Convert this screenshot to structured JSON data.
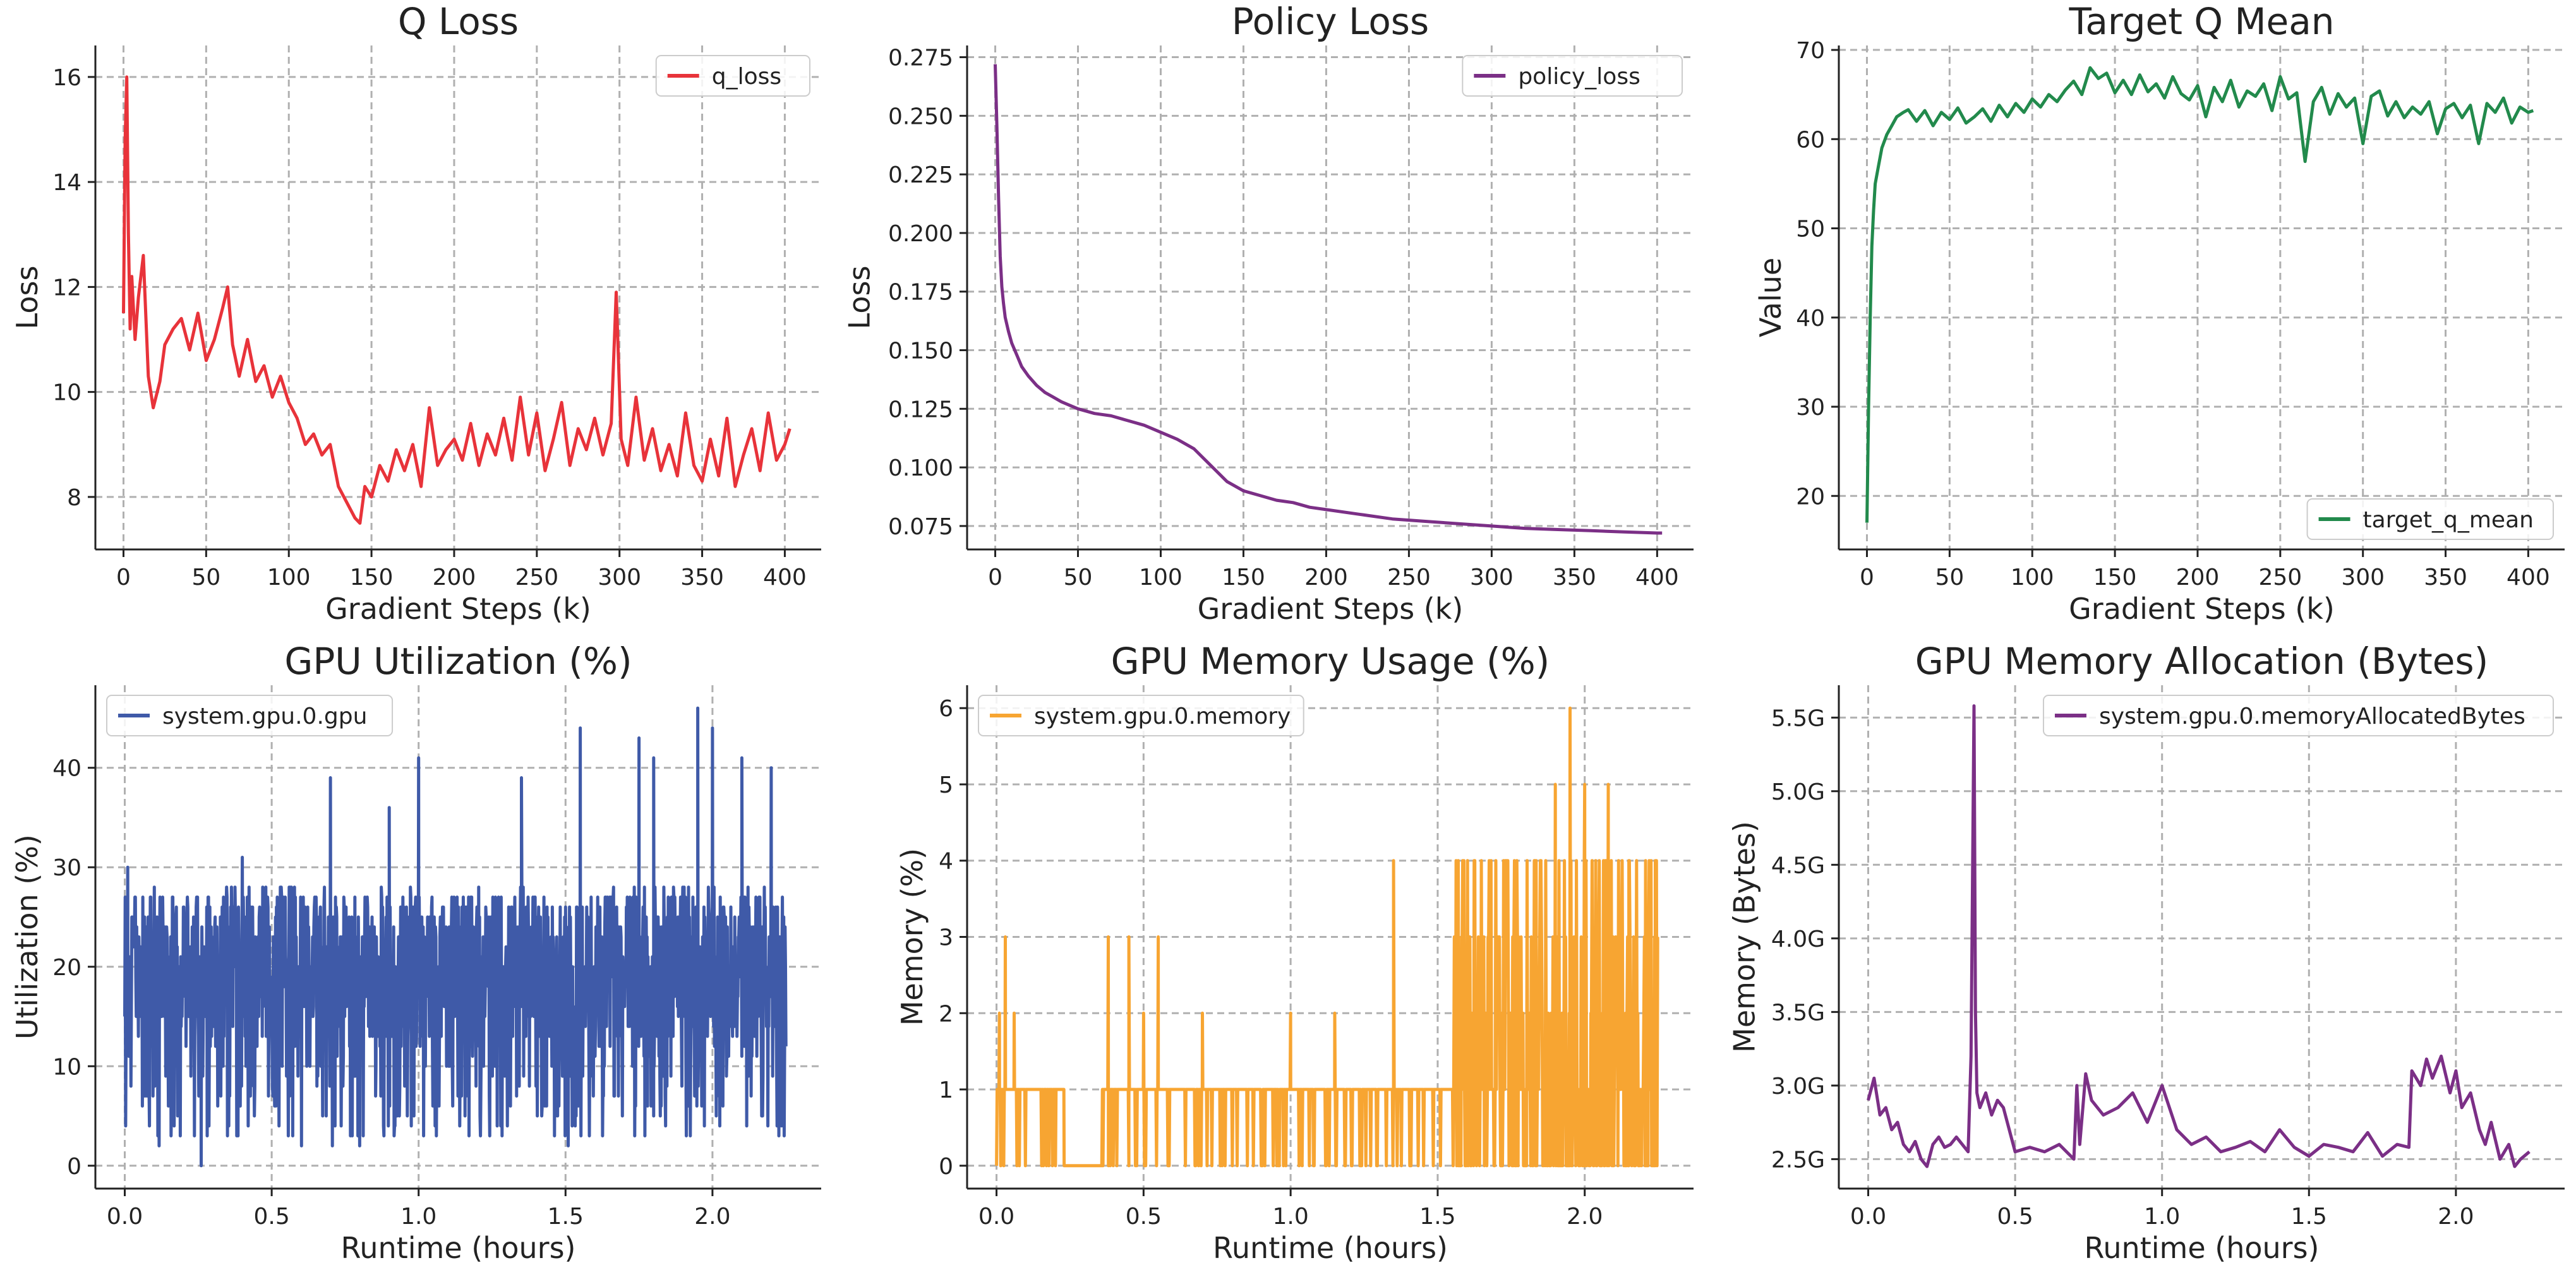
{
  "chart_data": [
    {
      "type": "line",
      "title": "Q Loss",
      "xlabel": "Gradient Steps (k)",
      "ylabel": "Loss",
      "xlim": [
        -17,
        422
      ],
      "ylim": [
        7.0,
        16.6
      ],
      "xticks": [
        0,
        50,
        100,
        150,
        200,
        250,
        300,
        350,
        400
      ],
      "xtick_labels": [
        "0",
        "50",
        "100",
        "150",
        "200",
        "250",
        "300",
        "350",
        "400"
      ],
      "yticks": [
        8,
        10,
        12,
        14,
        16
      ],
      "ytick_labels": [
        "8",
        "10",
        "12",
        "14",
        "16"
      ],
      "legend_position": "top-right",
      "series": [
        {
          "name": "q_loss",
          "color": "#e8333a",
          "x": [
            0,
            1,
            2,
            3,
            4,
            5,
            7,
            9,
            12,
            15,
            18,
            22,
            25,
            30,
            35,
            40,
            45,
            50,
            55,
            60,
            63,
            66,
            70,
            75,
            80,
            85,
            90,
            95,
            100,
            105,
            110,
            115,
            120,
            125,
            130,
            135,
            140,
            143,
            146,
            150,
            155,
            160,
            165,
            170,
            175,
            180,
            185,
            190,
            195,
            200,
            205,
            210,
            215,
            220,
            225,
            230,
            235,
            240,
            245,
            250,
            255,
            260,
            265,
            270,
            275,
            280,
            285,
            290,
            295,
            298,
            301,
            305,
            310,
            315,
            320,
            325,
            330,
            335,
            340,
            345,
            350,
            355,
            360,
            365,
            370,
            375,
            380,
            385,
            390,
            395,
            400,
            403
          ],
          "y": [
            11.5,
            14.8,
            16.0,
            13.0,
            11.2,
            12.2,
            11.0,
            11.8,
            12.6,
            10.3,
            9.7,
            10.2,
            10.9,
            11.2,
            11.4,
            10.8,
            11.5,
            10.6,
            11.0,
            11.6,
            12.0,
            10.9,
            10.3,
            11.0,
            10.2,
            10.5,
            9.9,
            10.3,
            9.8,
            9.5,
            9.0,
            9.2,
            8.8,
            9.0,
            8.2,
            7.9,
            7.6,
            7.5,
            8.2,
            8.0,
            8.6,
            8.3,
            8.9,
            8.5,
            9.0,
            8.2,
            9.7,
            8.6,
            8.9,
            9.1,
            8.7,
            9.4,
            8.6,
            9.2,
            8.8,
            9.5,
            8.7,
            9.9,
            8.8,
            9.6,
            8.5,
            9.1,
            9.8,
            8.6,
            9.3,
            8.9,
            9.5,
            8.8,
            9.4,
            11.9,
            9.1,
            8.6,
            9.9,
            8.7,
            9.3,
            8.5,
            9.0,
            8.4,
            9.6,
            8.6,
            8.3,
            9.1,
            8.4,
            9.5,
            8.2,
            8.8,
            9.3,
            8.5,
            9.6,
            8.7,
            9.0,
            9.3
          ]
        }
      ]
    },
    {
      "type": "line",
      "title": "Policy Loss",
      "xlabel": "Gradient Steps (k)",
      "ylabel": "Loss",
      "xlim": [
        -17,
        422
      ],
      "ylim": [
        0.065,
        0.28
      ],
      "xticks": [
        0,
        50,
        100,
        150,
        200,
        250,
        300,
        350,
        400
      ],
      "xtick_labels": [
        "0",
        "50",
        "100",
        "150",
        "200",
        "250",
        "300",
        "350",
        "400"
      ],
      "yticks": [
        0.075,
        0.1,
        0.125,
        0.15,
        0.175,
        0.2,
        0.225,
        0.25,
        0.275
      ],
      "ytick_labels": [
        "0.075",
        "0.100",
        "0.125",
        "0.150",
        "0.175",
        "0.200",
        "0.225",
        "0.250",
        "0.275"
      ],
      "legend_position": "top-right",
      "series": [
        {
          "name": "policy_loss",
          "color": "#7b2f86",
          "x": [
            0,
            1,
            2,
            3,
            4,
            5,
            6,
            8,
            10,
            13,
            16,
            20,
            25,
            30,
            35,
            40,
            50,
            60,
            70,
            80,
            90,
            100,
            110,
            120,
            130,
            140,
            150,
            160,
            170,
            180,
            190,
            200,
            220,
            240,
            260,
            280,
            300,
            320,
            340,
            360,
            380,
            400,
            403
          ],
          "y": [
            0.272,
            0.245,
            0.215,
            0.19,
            0.177,
            0.17,
            0.164,
            0.158,
            0.153,
            0.148,
            0.143,
            0.139,
            0.135,
            0.132,
            0.13,
            0.128,
            0.125,
            0.123,
            0.122,
            0.12,
            0.118,
            0.115,
            0.112,
            0.108,
            0.101,
            0.094,
            0.09,
            0.088,
            0.086,
            0.085,
            0.083,
            0.082,
            0.08,
            0.078,
            0.077,
            0.076,
            0.075,
            0.074,
            0.0735,
            0.073,
            0.0725,
            0.072,
            0.072
          ]
        }
      ]
    },
    {
      "type": "line",
      "title": "Target Q Mean",
      "xlabel": "Gradient Steps (k)",
      "ylabel": "Value",
      "xlim": [
        -17,
        422
      ],
      "ylim": [
        14,
        70.5
      ],
      "xticks": [
        0,
        50,
        100,
        150,
        200,
        250,
        300,
        350,
        400
      ],
      "xtick_labels": [
        "0",
        "50",
        "100",
        "150",
        "200",
        "250",
        "300",
        "350",
        "400"
      ],
      "yticks": [
        20,
        30,
        40,
        50,
        60,
        70
      ],
      "ytick_labels": [
        "20",
        "30",
        "40",
        "50",
        "60",
        "70"
      ],
      "legend_position": "bottom-right",
      "series": [
        {
          "name": "target_q_mean",
          "color": "#228a4c",
          "x": [
            0,
            1,
            2,
            3,
            4,
            5,
            7,
            9,
            12,
            15,
            18,
            22,
            25,
            30,
            35,
            40,
            45,
            50,
            55,
            60,
            65,
            70,
            75,
            80,
            85,
            90,
            95,
            100,
            105,
            110,
            115,
            120,
            125,
            130,
            135,
            140,
            145,
            150,
            155,
            160,
            165,
            170,
            175,
            180,
            185,
            190,
            195,
            200,
            205,
            210,
            215,
            220,
            225,
            230,
            235,
            240,
            245,
            250,
            255,
            260,
            265,
            270,
            275,
            280,
            285,
            290,
            295,
            300,
            305,
            310,
            315,
            320,
            325,
            330,
            335,
            340,
            345,
            350,
            355,
            360,
            365,
            370,
            375,
            380,
            385,
            390,
            395,
            400,
            403
          ],
          "y": [
            17,
            30,
            40,
            48,
            52,
            55,
            57,
            59,
            60.5,
            61.5,
            62.5,
            63,
            63.3,
            62,
            63.2,
            61.5,
            63,
            62.2,
            63.5,
            61.8,
            62.5,
            63.4,
            62,
            63.8,
            62.5,
            64,
            63,
            64.5,
            63.6,
            65,
            64.2,
            65.5,
            66.5,
            65,
            68,
            66.8,
            67.4,
            65.2,
            66.6,
            65,
            67.2,
            65.3,
            66.2,
            64.6,
            67,
            65.1,
            64.4,
            66,
            62.5,
            65.8,
            64.2,
            66.6,
            63.6,
            65.4,
            64.8,
            66.2,
            63.2,
            67,
            64.5,
            65.2,
            57.5,
            64.2,
            65.8,
            62.8,
            65.1,
            63.6,
            64.6,
            59.5,
            64.8,
            65.4,
            62.6,
            64.2,
            62.4,
            63.6,
            62.8,
            64.2,
            60.6,
            63.4,
            64,
            62.4,
            63.8,
            59.5,
            64,
            63,
            64.6,
            61.8,
            63.6,
            63,
            63.2
          ]
        }
      ]
    },
    {
      "type": "line",
      "title": "GPU Utilization (%)",
      "xlabel": "Runtime (hours)",
      "ylabel": "Utilization (%)",
      "xlim": [
        -0.1,
        2.37
      ],
      "ylim": [
        -2.3,
        48.3
      ],
      "xticks": [
        0.0,
        0.5,
        1.0,
        1.5,
        2.0
      ],
      "xtick_labels": [
        "0.0",
        "0.5",
        "1.0",
        "1.5",
        "2.0"
      ],
      "yticks": [
        0,
        10,
        20,
        30,
        40
      ],
      "ytick_labels": [
        "0",
        "10",
        "20",
        "30",
        "40"
      ],
      "legend_position": "top-left",
      "series": [
        {
          "name": "system.gpu.0.gpu",
          "color": "#3f5aa8",
          "x_range": [
            0.0,
            2.25
          ],
          "typical_band": [
            12,
            28
          ],
          "spike_points": [
            [
              0.01,
              30
            ],
            [
              0.26,
              0
            ],
            [
              0.4,
              31
            ],
            [
              0.7,
              39
            ],
            [
              0.9,
              36
            ],
            [
              1.0,
              41
            ],
            [
              1.35,
              39
            ],
            [
              1.55,
              44
            ],
            [
              1.75,
              43
            ],
            [
              1.8,
              41
            ],
            [
              1.95,
              46
            ],
            [
              2.0,
              44
            ],
            [
              2.1,
              41
            ],
            [
              2.2,
              40
            ]
          ]
        }
      ]
    },
    {
      "type": "line",
      "title": "GPU Memory Usage (%)",
      "xlabel": "Runtime (hours)",
      "ylabel": "Memory (%)",
      "xlim": [
        -0.1,
        2.37
      ],
      "ylim": [
        -0.3,
        6.3
      ],
      "xticks": [
        0.0,
        0.5,
        1.0,
        1.5,
        2.0
      ],
      "xtick_labels": [
        "0.0",
        "0.5",
        "1.0",
        "1.5",
        "2.0"
      ],
      "yticks": [
        0,
        1,
        2,
        3,
        4,
        5,
        6
      ],
      "ytick_labels": [
        "0",
        "1",
        "2",
        "3",
        "4",
        "5",
        "6"
      ],
      "legend_position": "top-left",
      "series": [
        {
          "name": "system.gpu.0.memory",
          "color": "#f7a532",
          "x_range": [
            0.0,
            2.25
          ],
          "baseline": 1,
          "spike_points": [
            [
              0.01,
              2
            ],
            [
              0.03,
              3
            ],
            [
              0.06,
              2
            ],
            [
              0.2,
              1
            ],
            [
              0.23,
              0
            ],
            [
              0.38,
              3
            ],
            [
              0.45,
              3
            ],
            [
              0.5,
              2
            ],
            [
              0.55,
              3
            ],
            [
              0.7,
              2
            ],
            [
              1.0,
              2
            ],
            [
              1.15,
              2
            ],
            [
              1.35,
              4
            ],
            [
              1.57,
              4
            ],
            [
              1.9,
              5
            ],
            [
              1.95,
              6
            ],
            [
              2.0,
              5
            ],
            [
              2.08,
              5
            ],
            [
              2.15,
              4
            ],
            [
              2.24,
              4
            ]
          ]
        }
      ]
    },
    {
      "type": "line",
      "title": "GPU Memory Allocation (Bytes)",
      "xlabel": "Runtime (hours)",
      "ylabel": "Memory (Bytes)",
      "xlim": [
        -0.1,
        2.37
      ],
      "ylim": [
        2.3,
        5.72
      ],
      "xticks": [
        0.0,
        0.5,
        1.0,
        1.5,
        2.0
      ],
      "xtick_labels": [
        "0.0",
        "0.5",
        "1.0",
        "1.5",
        "2.0"
      ],
      "yticks": [
        2.5,
        3.0,
        3.5,
        4.0,
        4.5,
        5.0,
        5.5
      ],
      "ytick_labels": [
        "2.5G",
        "3.0G",
        "3.5G",
        "4.0G",
        "4.5G",
        "5.0G",
        "5.5G"
      ],
      "legend_position": "top-right",
      "series": [
        {
          "name": "system.gpu.0.memoryAllocatedBytes",
          "color": "#7b2f86",
          "x": [
            0.0,
            0.02,
            0.04,
            0.06,
            0.08,
            0.1,
            0.12,
            0.14,
            0.16,
            0.18,
            0.2,
            0.22,
            0.24,
            0.26,
            0.28,
            0.3,
            0.32,
            0.34,
            0.35,
            0.36,
            0.365,
            0.37,
            0.38,
            0.4,
            0.42,
            0.44,
            0.46,
            0.48,
            0.5,
            0.55,
            0.6,
            0.65,
            0.7,
            0.71,
            0.72,
            0.74,
            0.76,
            0.8,
            0.85,
            0.9,
            0.95,
            1.0,
            1.05,
            1.1,
            1.15,
            1.2,
            1.25,
            1.3,
            1.35,
            1.4,
            1.45,
            1.5,
            1.55,
            1.6,
            1.65,
            1.7,
            1.75,
            1.8,
            1.84,
            1.85,
            1.88,
            1.9,
            1.92,
            1.95,
            1.98,
            2.0,
            2.02,
            2.05,
            2.08,
            2.1,
            2.12,
            2.15,
            2.18,
            2.2,
            2.22,
            2.25
          ],
          "y": [
            2.9,
            3.05,
            2.8,
            2.85,
            2.7,
            2.75,
            2.6,
            2.55,
            2.62,
            2.5,
            2.45,
            2.6,
            2.65,
            2.58,
            2.6,
            2.65,
            2.6,
            2.55,
            3.2,
            5.58,
            3.5,
            2.95,
            2.85,
            2.95,
            2.8,
            2.9,
            2.85,
            2.7,
            2.55,
            2.58,
            2.55,
            2.6,
            2.5,
            3.0,
            2.6,
            3.08,
            2.9,
            2.8,
            2.85,
            2.95,
            2.75,
            3.0,
            2.7,
            2.6,
            2.65,
            2.55,
            2.58,
            2.62,
            2.55,
            2.7,
            2.58,
            2.52,
            2.6,
            2.58,
            2.55,
            2.68,
            2.52,
            2.6,
            2.58,
            3.1,
            3.0,
            3.18,
            3.05,
            3.2,
            2.95,
            3.1,
            2.85,
            2.95,
            2.7,
            2.6,
            2.75,
            2.5,
            2.6,
            2.45,
            2.5,
            2.55
          ]
        }
      ]
    }
  ]
}
